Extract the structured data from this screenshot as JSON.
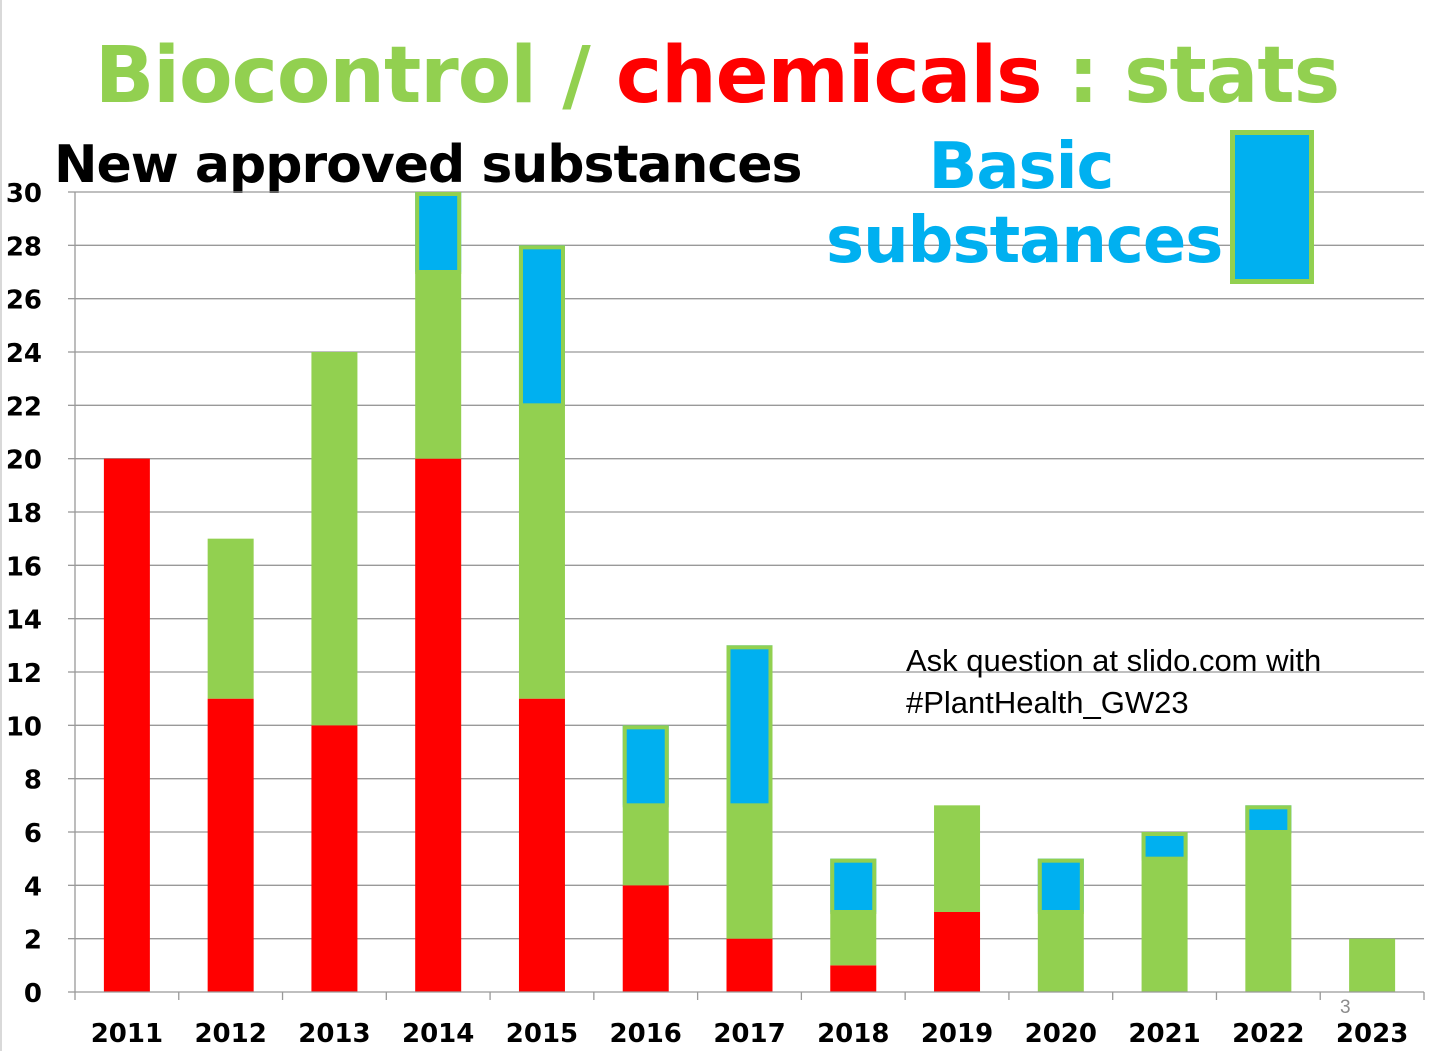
{
  "title": {
    "biocontrol": "Biocontrol",
    "slash": "/",
    "chemicals": "chemicals",
    "stats": ": stats"
  },
  "subtitle": "New approved substances",
  "legend": {
    "label_line1": "Basic",
    "label_line2": "substances",
    "swatch_fill": "#00b0f0",
    "swatch_border": "#92d050"
  },
  "annotation": {
    "line1": "Ask question at slido.com with",
    "line2": "#PlantHealth_GW23"
  },
  "slide_number": "3",
  "colors": {
    "biocontrol": "#92d050",
    "chemicals": "#ff0000",
    "basic": "#00b0f0",
    "slash": "#92d050",
    "grid": "#999999"
  },
  "chart_data": {
    "type": "bar",
    "stacked": true,
    "categories": [
      "2011",
      "2012",
      "2013",
      "2014",
      "2015",
      "2016",
      "2017",
      "2018",
      "2019",
      "2020",
      "2021",
      "2022",
      "2023"
    ],
    "series": [
      {
        "key": "chemicals",
        "values": [
          20,
          11,
          10,
          20,
          11,
          4,
          2,
          1,
          3,
          0,
          0,
          0,
          0
        ]
      },
      {
        "key": "biocontrol",
        "values": [
          0,
          6,
          14,
          7,
          11,
          3,
          5,
          2,
          4,
          3,
          5,
          6,
          2
        ]
      },
      {
        "name": "Basic substances",
        "key": "basic",
        "values": [
          0,
          0,
          0,
          3,
          6,
          3,
          6,
          2,
          0,
          2,
          1,
          1,
          0
        ]
      }
    ],
    "ylim": [
      0,
      30
    ],
    "yticks": [
      "0",
      "2",
      "4",
      "6",
      "8",
      "10",
      "12",
      "14",
      "16",
      "18",
      "20",
      "22",
      "24",
      "26",
      "28",
      "30"
    ],
    "grid": true
  }
}
